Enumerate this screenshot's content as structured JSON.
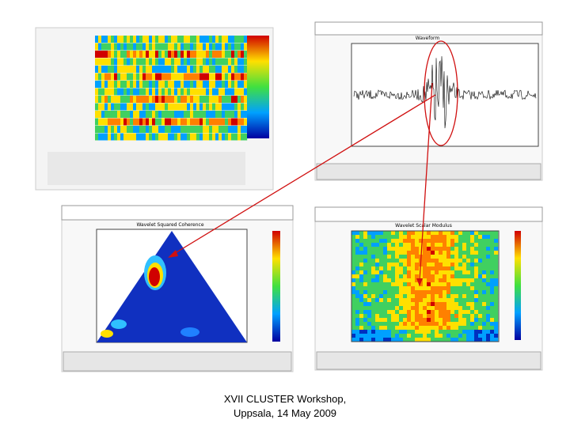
{
  "panels": {
    "waveform_title": "Waveform",
    "coherence_title": "Wavelet Squared Coherence",
    "modulus_title": "Wavelet Scalar Modulus"
  },
  "caption": {
    "line1": "XVII CLUSTER Workshop,",
    "line2": "Uppsala, 14 May 2009"
  }
}
